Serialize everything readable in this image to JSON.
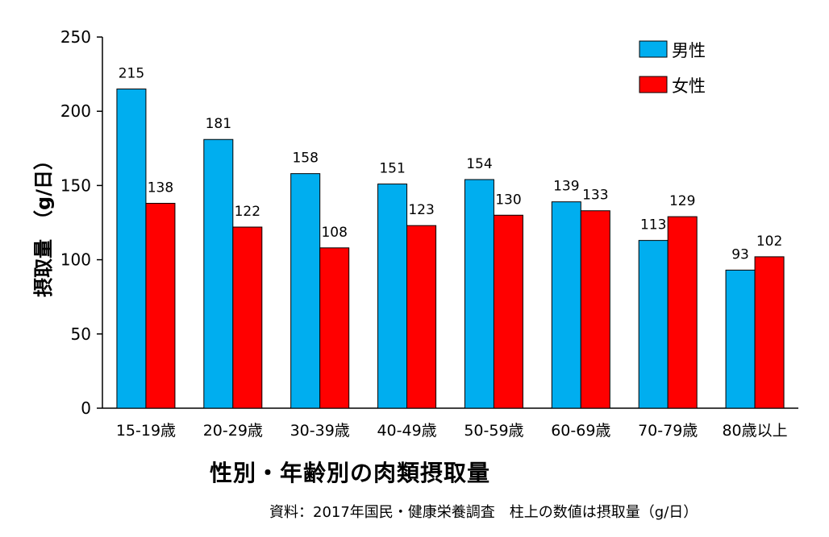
{
  "chart_data": {
    "type": "bar",
    "title": "性別・年齢別の肉類摂取量",
    "source": "資料：2017年国民・健康栄養調査　柱上の数値は摂取量（g/日）",
    "ylabel": "摂取量　（g/日）",
    "xlabel": "",
    "ylim": [
      0,
      250
    ],
    "yticks": [
      0,
      50,
      100,
      150,
      200,
      250
    ],
    "grid": false,
    "legend_position": "top-right",
    "categories": [
      "15-19歳",
      "20-29歳",
      "30-39歳",
      "40-49歳",
      "50-59歳",
      "60-69歳",
      "70-79歳",
      "80歳以上"
    ],
    "series": [
      {
        "name": "男性",
        "color": "#00AEEF",
        "values": [
          215,
          181,
          158,
          151,
          154,
          139,
          113,
          93
        ]
      },
      {
        "name": "女性",
        "color": "#FF0000",
        "values": [
          138,
          122,
          108,
          123,
          130,
          133,
          129,
          102
        ]
      }
    ]
  }
}
